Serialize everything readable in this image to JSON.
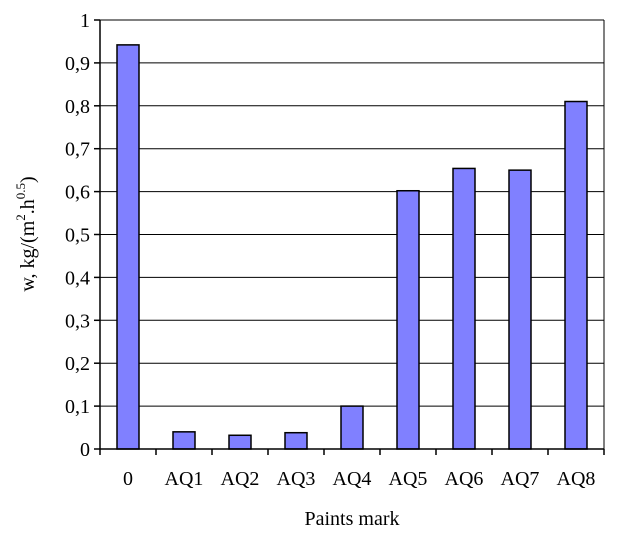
{
  "chart_data": {
    "type": "bar",
    "categories": [
      "0",
      "AQ1",
      "AQ2",
      "AQ3",
      "AQ4",
      "AQ5",
      "AQ6",
      "AQ7",
      "AQ8"
    ],
    "values": [
      0.942,
      0.04,
      0.032,
      0.038,
      0.1,
      0.602,
      0.654,
      0.65,
      0.81
    ],
    "xlabel": "Paints mark",
    "ylabel": {
      "part1": "w, kg/(m",
      "sup1": "2",
      "part2": ".h",
      "sup2": "0.5",
      "part3": ")"
    },
    "ylim": [
      0,
      1
    ],
    "yticks": [
      "0",
      "0,1",
      "0,2",
      "0,3",
      "0,4",
      "0,5",
      "0,6",
      "0,7",
      "0,8",
      "0,9",
      "1"
    ],
    "grid": true,
    "bar_color": "#8080ff",
    "bar_stroke": "#000000",
    "grid_color": "#000000"
  }
}
